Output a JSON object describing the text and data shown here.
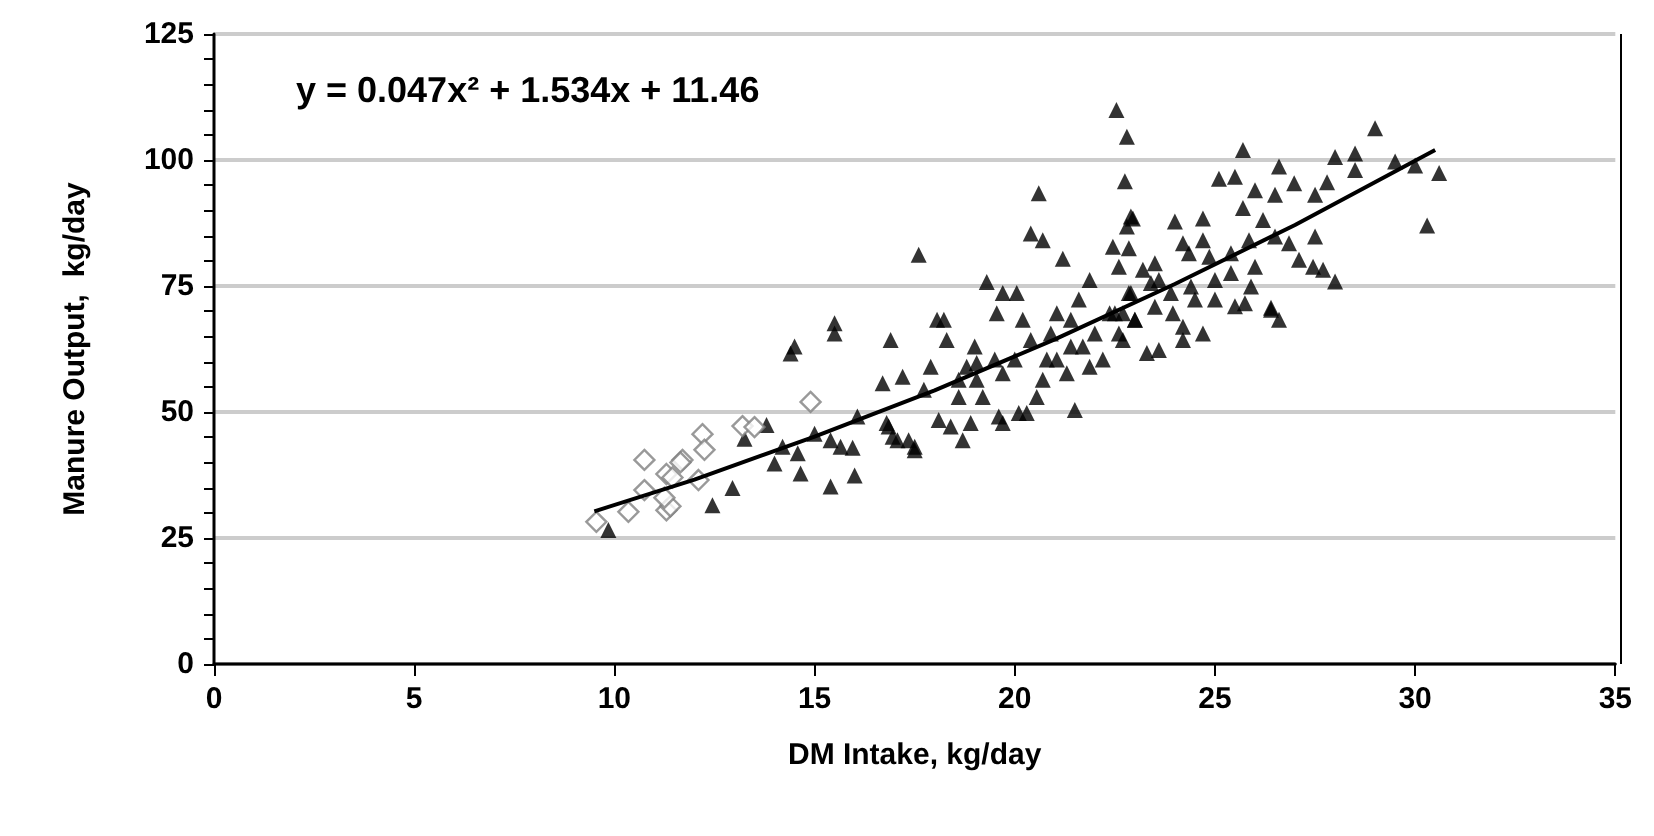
{
  "chart_data": {
    "type": "scatter",
    "xlabel": "DM Intake, kg/day",
    "ylabel": "Manure Output,  kg/day",
    "annotations": [
      "y = 0.047x² + 1.534x + 11.46"
    ],
    "xlim": [
      0,
      35
    ],
    "xticks": [
      0,
      5,
      10,
      15,
      20,
      25,
      30,
      35
    ],
    "ylim": [
      0,
      125
    ],
    "yticks": [
      0,
      {
        "value": 5,
        "label": null
      },
      {
        "value": 10,
        "label": null
      },
      {
        "value": 15,
        "label": null
      },
      {
        "value": 20,
        "label": null
      },
      25,
      {
        "value": 30,
        "label": null
      },
      {
        "value": 35,
        "label": null
      },
      {
        "value": 40,
        "label": null
      },
      {
        "value": 45,
        "label": null
      },
      50,
      {
        "value": 55,
        "label": null
      },
      {
        "value": 60,
        "label": null
      },
      {
        "value": 65,
        "label": null
      },
      {
        "value": 70,
        "label": null
      },
      75,
      {
        "value": 80,
        "label": null
      },
      {
        "value": 85,
        "label": null
      },
      {
        "value": 90,
        "label": null
      },
      {
        "value": 95,
        "label": null
      },
      100,
      {
        "value": 105,
        "label": null
      },
      {
        "value": 110,
        "label": null
      },
      {
        "value": 115,
        "label": null
      },
      {
        "value": 120,
        "label": null
      },
      125
    ],
    "grid": "y",
    "series": [
      {
        "marker": "triangle",
        "color": "#000000",
        "x": [
          9.85,
          12.45,
          12.95,
          13.8,
          13.25,
          14.2,
          14.0,
          14.58,
          14.65,
          14.4,
          14.5,
          15.0,
          15.4,
          15.65,
          15.95,
          15.4,
          16.0,
          15.5,
          15.5,
          16.07,
          16.7,
          16.9,
          17.2,
          16.8,
          17.07,
          17.5,
          17.6,
          17.73,
          17.9,
          18.06,
          18.23,
          18.3,
          18.1,
          18.4,
          18.6,
          18.7,
          18.8,
          19.0,
          19.05,
          19.2,
          19.3,
          19.5,
          19.55,
          19.7,
          19.7,
          20.0,
          20.05,
          20.2,
          20.3,
          20.55,
          20.4,
          20.6,
          20.7,
          20.8,
          21.05,
          21.2,
          21.3,
          21.5,
          21.4,
          21.6,
          21.87,
          22.0,
          22.2,
          22.37,
          22.45,
          22.6,
          22.75,
          22.9,
          22.8,
          22.7,
          22.85,
          23.0,
          23.4,
          22.54,
          22.8,
          22.95,
          22.85,
          24.0,
          24.7,
          25.1,
          25.5,
          25.7,
          26.0,
          26.6,
          26.98,
          26.5,
          27.5,
          27.8,
          28.0,
          28.5,
          28.5,
          29.0,
          29.5,
          30.0,
          30.6,
          30.3,
          28.0,
          27.7,
          27.45,
          27.5,
          26.6,
          26.4,
          27.1,
          26.85,
          26.5,
          26.2,
          25.7,
          24.7,
          24.35,
          24.2,
          24.86,
          25.4,
          25.85,
          26.0,
          25.5,
          25.75,
          26.4,
          24.7,
          24.2,
          23.6,
          23.3,
          24.2,
          23.5,
          23.6,
          23.2,
          22.9,
          22.7,
          22.6,
          23.0,
          23.9,
          24.4,
          25.0,
          24.5,
          25.0,
          25.4,
          25.9,
          23.5,
          23.95,
          16.85,
          16.95,
          17.35,
          17.5,
          18.9,
          19.6,
          20.1,
          20.7,
          21.05,
          21.7,
          22.5,
          21.87,
          20.4,
          19.05,
          19.7,
          18.6,
          20.9,
          21.4
        ],
        "values": [
          26.6,
          31.5,
          34.9,
          47.4,
          44.7,
          43.1,
          39.8,
          41.8,
          37.8,
          61.6,
          63,
          45.7,
          44.4,
          43.1,
          42.9,
          35.2,
          37.4,
          67.6,
          65.6,
          49.1,
          55.7,
          64.3,
          57,
          47.8,
          44.4,
          43.1,
          81.2,
          54.4,
          59,
          68.3,
          68.3,
          64.3,
          48.4,
          47.1,
          53,
          44.4,
          59,
          63,
          56.4,
          53,
          75.8,
          60.4,
          69.6,
          73.6,
          47.8,
          60.4,
          73.6,
          68.3,
          49.8,
          53,
          85.4,
          93.4,
          84.1,
          60.4,
          69.6,
          80.4,
          57.7,
          50.4,
          63,
          72.3,
          76.2,
          65.6,
          60.4,
          69.6,
          82.8,
          78.8,
          95.8,
          88.8,
          86.8,
          64.3,
          73.6,
          68.3,
          75.6,
          109.9,
          104.6,
          88.4,
          82.5,
          87.8,
          88.4,
          96.3,
          96.7,
          102,
          94,
          98.7,
          95.4,
          93.1,
          93.1,
          95.6,
          100.6,
          101.3,
          98,
          106.3,
          99.7,
          98.9,
          97.4,
          87,
          75.9,
          78.2,
          78.8,
          84.8,
          68.3,
          70.3,
          80.2,
          83.5,
          84.8,
          88.1,
          90.5,
          84.1,
          81.5,
          83.5,
          80.8,
          81.5,
          84.1,
          78.8,
          71,
          71.6,
          70.7,
          65.6,
          64.3,
          62.3,
          61.7,
          66.9,
          79.5,
          76.2,
          78.2,
          73.6,
          69.6,
          65.6,
          68.3,
          73.6,
          74.9,
          76.2,
          72.3,
          72.3,
          77.6,
          74.9,
          70.9,
          69.6,
          47.1,
          45.1,
          44.4,
          42.4,
          47.8,
          49.1,
          49.8,
          56.4,
          60.4,
          63,
          69.6,
          59,
          64.3,
          59.7,
          57.7,
          56.4,
          65.6,
          68.3
        ]
      },
      {
        "marker": "diamond",
        "color": "#808080",
        "x": [
          14.9,
          13.2,
          13.5,
          12.2,
          12.25,
          11.7,
          12.1,
          11.3,
          11.3,
          10.75,
          9.55,
          10.35,
          10.75,
          11.65,
          11.45,
          11.4,
          11.25
        ],
        "values": [
          52,
          47.2,
          47,
          45.6,
          42.5,
          40.5,
          36.5,
          37.7,
          30.5,
          40.5,
          28.2,
          30.2,
          34.5,
          40,
          37,
          31.3,
          33
        ]
      },
      {
        "type": "line",
        "marker": "none",
        "color": "#000000",
        "x": [
          9.5,
          12,
          15,
          18,
          21,
          24,
          27,
          30.5
        ],
        "values": [
          30.3,
          36.6,
          45.1,
          54.3,
          64.4,
          75.4,
          87.1,
          102.0
        ]
      }
    ]
  }
}
